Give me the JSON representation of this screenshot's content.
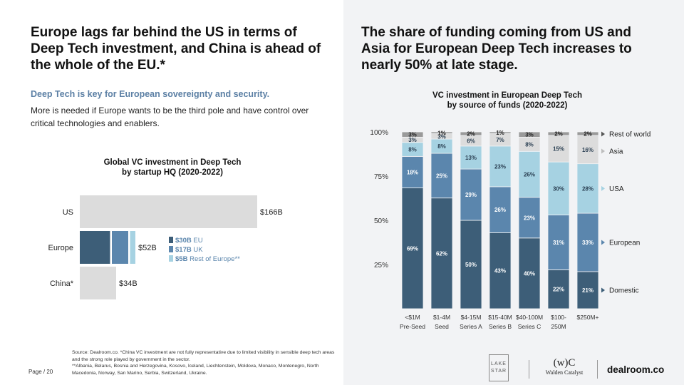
{
  "left": {
    "headline": "Europe lags far behind the US in terms of Deep Tech investment, and China is ahead of the whole of the EU.*",
    "subheading": "Deep Tech is key for European sovereignty and security.",
    "body": "More is needed if Europe wants to be the third pole and have control over critical technologies and enablers."
  },
  "right": {
    "headline": "The share of funding coming from US and Asia for European Deep Tech increases to nearly 50% at late stage."
  },
  "colors": {
    "us_bar": "#dcdcdc",
    "eu": "#3d5e78",
    "uk": "#5b86ad",
    "rest_of_europe": "#a6d2e2",
    "domestic": "#3d5e78",
    "european": "#5b86ad",
    "usa": "#a6d2e2",
    "asia": "#dcdcdc",
    "rest_of_world": "#9a9a9a"
  },
  "chart_data": [
    {
      "type": "bar",
      "orientation": "horizontal",
      "title": "Global VC investment in Deep Tech",
      "subtitle": "by startup HQ (2020-2022)",
      "unit": "$B",
      "categories": [
        "US",
        "Europe",
        "China*"
      ],
      "values": [
        166,
        52,
        34
      ],
      "value_labels": [
        "$166B",
        "$52B",
        "$34B"
      ],
      "europe_breakdown": {
        "segments": [
          {
            "name": "EU",
            "value": 30,
            "label": "$30B"
          },
          {
            "name": "UK",
            "value": 17,
            "label": "$17B"
          },
          {
            "name": "Rest of Europe**",
            "value": 5,
            "label": "$5B"
          }
        ]
      }
    },
    {
      "type": "bar",
      "stacked": true,
      "title": "VC investment in European Deep Tech",
      "subtitle": "by source of funds (2020-2022)",
      "ylim": [
        0,
        100
      ],
      "yticks": [
        "100%",
        "75%",
        "50%",
        "25%"
      ],
      "categories": [
        [
          "<$1M",
          "Pre-Seed"
        ],
        [
          "$1-4M",
          "Seed"
        ],
        [
          "$4-15M",
          "Series A"
        ],
        [
          "$15-40M",
          "Series B"
        ],
        [
          "$40-100M",
          "Series C"
        ],
        [
          "$100-",
          "250M"
        ],
        [
          "$250M+"
        ]
      ],
      "series": [
        {
          "name": "Domestic",
          "values": [
            69,
            62,
            50,
            43,
            40,
            22,
            21
          ]
        },
        {
          "name": "European",
          "values": [
            18,
            25,
            29,
            26,
            23,
            31,
            33
          ]
        },
        {
          "name": "USA",
          "values": [
            8,
            8,
            13,
            23,
            26,
            30,
            28
          ]
        },
        {
          "name": "Asia",
          "values": [
            3,
            3,
            6,
            7,
            8,
            15,
            16
          ]
        },
        {
          "name": "Rest of world",
          "values": [
            3,
            1,
            2,
            1,
            3,
            2,
            2
          ]
        }
      ],
      "legend": [
        "Rest of world",
        "Asia",
        "USA",
        "European",
        "Domestic"
      ]
    }
  ],
  "footnote": {
    "source": "Source: Dealroom.co.",
    "note1": "*China VC investment are not fully representative due to limited visibility in sensible deep tech areas and the strong role played by government in the sector.",
    "note2": "**Albania, Belarus, Bosnia and Herzegovina, Kosovo, Iceland, Liechtenstein, Moldova, Monaco, Montenegro, North Macedonia, Norway, San Marino, Serbia, Switzerland, Ukraine."
  },
  "page_label": "Page / 20",
  "logos": {
    "lake_star_top": "LAKE",
    "lake_star_bottom": "STAR",
    "walden_mark": "(w)C",
    "walden_name": "Walden Catalyst",
    "dealroom": "dealroom.co"
  }
}
